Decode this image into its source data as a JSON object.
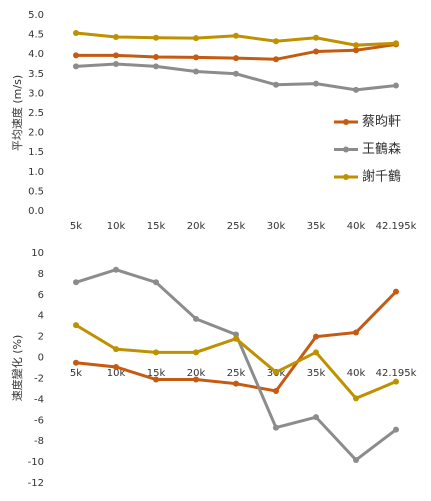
{
  "chart_data": [
    {
      "type": "line",
      "y_label": "平均速度 (m/s)",
      "categories": [
        "5k",
        "10k",
        "15k",
        "20k",
        "25k",
        "30k",
        "35k",
        "40k",
        "42.195k"
      ],
      "series": [
        {
          "name": "蔡昀軒",
          "color": "#c55a11",
          "values": [
            3.97,
            3.97,
            3.93,
            3.92,
            3.9,
            3.87,
            4.07,
            4.1,
            4.25
          ]
        },
        {
          "name": "王鶴森",
          "color": "#8c8c8c",
          "values": [
            3.69,
            3.75,
            3.69,
            3.56,
            3.5,
            3.22,
            3.25,
            3.09,
            3.2
          ]
        },
        {
          "name": "謝千鶴",
          "color": "#bf9000",
          "values": [
            4.54,
            4.44,
            4.42,
            4.41,
            4.47,
            4.33,
            4.42,
            4.23,
            4.28
          ]
        }
      ],
      "ylim": [
        0,
        5
      ],
      "yticks": [
        {
          "value": 0,
          "label": "0.0"
        },
        {
          "value": 0.5,
          "label": "0.5"
        },
        {
          "value": 1,
          "label": "1.0"
        },
        {
          "value": 1.5,
          "label": "1.5"
        },
        {
          "value": 2,
          "label": "2.0"
        },
        {
          "value": 2.5,
          "label": "2.5"
        },
        {
          "value": 3,
          "label": "3.0"
        },
        {
          "value": 3.5,
          "label": "3.5"
        },
        {
          "value": 4,
          "label": "4.0"
        },
        {
          "value": 4.5,
          "label": "4.5"
        },
        {
          "value": 5,
          "label": "5.0"
        }
      ],
      "legend": "right"
    },
    {
      "type": "line",
      "y_label": "速度變化 (%)",
      "categories": [
        "5k",
        "10k",
        "15k",
        "20k",
        "25k",
        "30k",
        "35k",
        "40k",
        "42.195k"
      ],
      "series": [
        {
          "name": "蔡昀軒",
          "color": "#c55a11",
          "values": [
            -0.5,
            -0.9,
            -2.1,
            -2.1,
            -2.5,
            -3.2,
            2.0,
            2.4,
            6.3
          ]
        },
        {
          "name": "王鶴森",
          "color": "#8c8c8c",
          "values": [
            7.2,
            8.4,
            7.2,
            3.7,
            2.2,
            -6.7,
            -5.7,
            -9.8,
            -6.9
          ]
        },
        {
          "name": "謝千鶴",
          "color": "#bf9000",
          "values": [
            3.1,
            0.8,
            0.5,
            0.5,
            1.8,
            -1.4,
            0.5,
            -3.9,
            -2.3
          ]
        }
      ],
      "ylim": [
        -12,
        10
      ],
      "yticks": [
        -12,
        -10,
        -8,
        -6,
        -4,
        -2,
        0,
        2,
        4,
        6,
        8,
        10
      ]
    }
  ]
}
